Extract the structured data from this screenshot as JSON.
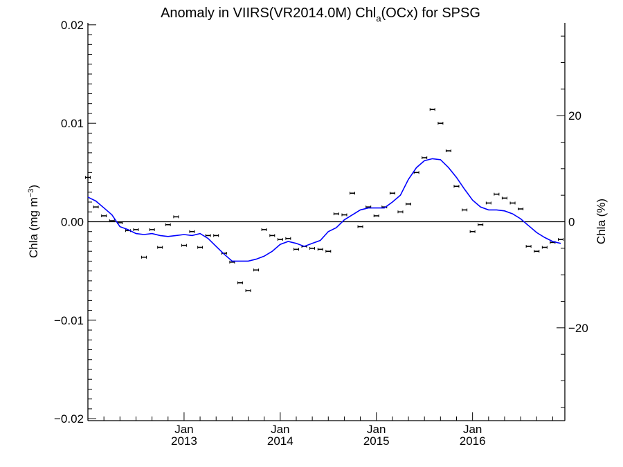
{
  "chart_data": {
    "type": "scatter",
    "title": {
      "prefix": "Anomaly in VIIRS(VR2014.0M) Chl",
      "subscript": "a",
      "suffix": "(OCx) for SPSG"
    },
    "ylabel_left": {
      "main": "Chla (mg m",
      "sup": "−3",
      "close": ")"
    },
    "ylabel_right": "Chla (%)",
    "xlim": [
      2012.0,
      2016.96
    ],
    "ylim": [
      -0.0202,
      0.0202
    ],
    "ylim_right": [
      -37.5,
      37.5
    ],
    "left_ticks": [
      {
        "value": 0.02,
        "label": "0.02"
      },
      {
        "value": 0.01,
        "label": "0.01"
      },
      {
        "value": 0.0,
        "label": "0.00"
      },
      {
        "value": -0.01,
        "label": "−0.01"
      },
      {
        "value": -0.02,
        "label": "−0.02"
      }
    ],
    "right_ticks": [
      {
        "value": 20,
        "label": "20"
      },
      {
        "value": 0,
        "label": "0"
      },
      {
        "value": -20,
        "label": "−20"
      }
    ],
    "x_ticks": [
      {
        "value": 2013.0,
        "month": "Jan",
        "year": "2013"
      },
      {
        "value": 2014.0,
        "month": "Jan",
        "year": "2014"
      },
      {
        "value": 2015.0,
        "month": "Jan",
        "year": "2015"
      },
      {
        "value": 2016.0,
        "month": "Jan",
        "year": "2016"
      }
    ],
    "zero_line": true,
    "series": [
      {
        "kind": "points_with_errorbars",
        "color": "#000000",
        "x": [
          2012.0,
          2012.083,
          2012.167,
          2012.25,
          2012.333,
          2012.417,
          2012.5,
          2012.583,
          2012.667,
          2012.75,
          2012.833,
          2012.917,
          2013.0,
          2013.083,
          2013.167,
          2013.25,
          2013.333,
          2013.417,
          2013.5,
          2013.583,
          2013.667,
          2013.75,
          2013.833,
          2013.917,
          2014.0,
          2014.083,
          2014.167,
          2014.25,
          2014.333,
          2014.417,
          2014.5,
          2014.583,
          2014.667,
          2014.75,
          2014.833,
          2014.917,
          2015.0,
          2015.083,
          2015.167,
          2015.25,
          2015.333,
          2015.417,
          2015.5,
          2015.583,
          2015.667,
          2015.75,
          2015.833,
          2015.917,
          2016.0,
          2016.083,
          2016.167,
          2016.25,
          2016.333,
          2016.417,
          2016.5,
          2016.583,
          2016.667,
          2016.75,
          2016.833,
          2016.917
        ],
        "y": [
          0.0045,
          0.0015,
          0.0006,
          0.0001,
          -0.0001,
          -0.0009,
          -0.0008,
          -0.0036,
          -0.0008,
          -0.0026,
          -0.0003,
          0.0005,
          -0.0024,
          -0.001,
          -0.0026,
          -0.0014,
          -0.0014,
          -0.0032,
          -0.0041,
          -0.0062,
          -0.007,
          -0.0049,
          -0.0008,
          -0.0014,
          -0.0018,
          -0.0017,
          -0.0028,
          -0.0025,
          -0.0027,
          -0.0028,
          -0.003,
          0.0008,
          0.0007,
          0.0029,
          -0.0005,
          0.0015,
          0.0006,
          0.0015,
          0.0029,
          0.001,
          0.0018,
          0.005,
          0.0065,
          0.0114,
          0.01,
          0.0072,
          0.0036,
          0.0012,
          -0.001,
          -0.0003,
          0.0019,
          0.0028,
          0.0024,
          0.0019,
          0.0013,
          -0.0025,
          -0.003,
          -0.0026,
          -0.0021,
          -0.0018
        ]
      },
      {
        "kind": "smoothed_line",
        "color": "#0000ff",
        "x": [
          2012.0,
          2012.083,
          2012.167,
          2012.25,
          2012.333,
          2012.417,
          2012.5,
          2012.583,
          2012.667,
          2012.75,
          2012.833,
          2012.917,
          2013.0,
          2013.083,
          2013.167,
          2013.25,
          2013.333,
          2013.417,
          2013.5,
          2013.583,
          2013.667,
          2013.75,
          2013.833,
          2013.917,
          2014.0,
          2014.083,
          2014.167,
          2014.25,
          2014.333,
          2014.417,
          2014.5,
          2014.583,
          2014.667,
          2014.75,
          2014.833,
          2014.917,
          2015.0,
          2015.083,
          2015.167,
          2015.25,
          2015.333,
          2015.417,
          2015.5,
          2015.583,
          2015.667,
          2015.75,
          2015.833,
          2015.917,
          2016.0,
          2016.083,
          2016.167,
          2016.25,
          2016.333,
          2016.417,
          2016.5,
          2016.583,
          2016.667,
          2016.75,
          2016.833,
          2016.917
        ],
        "y": [
          0.0025,
          0.0021,
          0.0014,
          0.0007,
          -0.0005,
          -0.0008,
          -0.0012,
          -0.0013,
          -0.0012,
          -0.0014,
          -0.0015,
          -0.0014,
          -0.0013,
          -0.0014,
          -0.0012,
          -0.0017,
          -0.0025,
          -0.0033,
          -0.004,
          -0.004,
          -0.004,
          -0.0038,
          -0.0035,
          -0.003,
          -0.0023,
          -0.002,
          -0.0022,
          -0.0025,
          -0.0022,
          -0.0019,
          -0.001,
          -0.0006,
          0.0002,
          0.0007,
          0.0012,
          0.0014,
          0.0014,
          0.0014,
          0.002,
          0.0027,
          0.0043,
          0.0055,
          0.0062,
          0.0064,
          0.0063,
          0.0055,
          0.0045,
          0.0033,
          0.0022,
          0.0015,
          0.0012,
          0.0012,
          0.0011,
          0.0008,
          0.0003,
          -0.0004,
          -0.0011,
          -0.0016,
          -0.002,
          -0.0022
        ]
      }
    ]
  }
}
